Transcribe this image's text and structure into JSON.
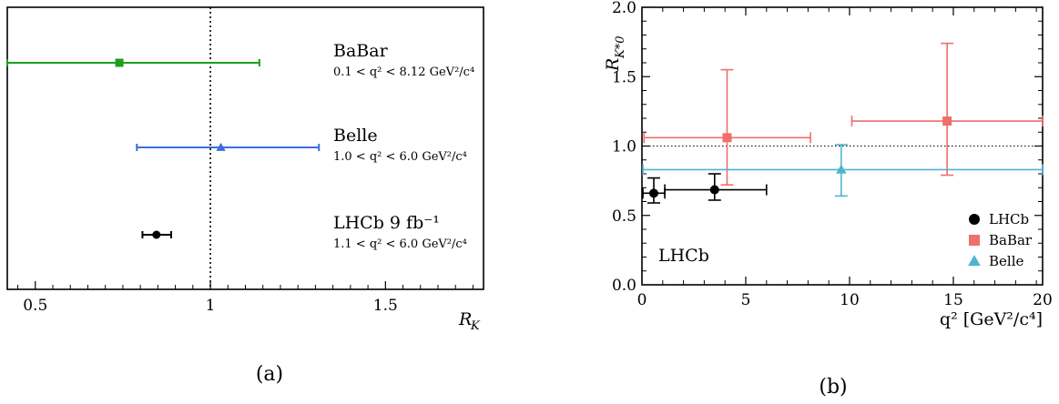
{
  "chart_data": [
    {
      "type": "scatter",
      "panel_caption": "(a)",
      "xlabel": "R",
      "xlabel_sub": "K",
      "xlim": [
        0.42,
        1.78
      ],
      "xticks": [
        "0.5",
        "1",
        "1.5"
      ],
      "reference_line": 1.0,
      "grid": false,
      "series": [
        {
          "name": "BaBar",
          "subtitle": "0.1 < q² < 8.12 GeV²/c⁴",
          "value": 0.74,
          "lo": 0.42,
          "hi": 1.14,
          "color": "#1f9e1f",
          "marker": "square"
        },
        {
          "name": "Belle",
          "subtitle": "1.0 < q² < 6.0 GeV²/c⁴",
          "value": 1.03,
          "lo": 0.79,
          "hi": 1.31,
          "color": "#3a6fdc",
          "marker": "triangle"
        },
        {
          "name": "LHCb 9 fb⁻¹",
          "subtitle": "1.1 < q² < 6.0 GeV²/c⁴",
          "value": 0.846,
          "lo": 0.806,
          "hi": 0.888,
          "color": "#000000",
          "marker": "circle"
        }
      ]
    },
    {
      "type": "scatter",
      "panel_caption": "(b)",
      "xlabel": "q² [GeV²/c⁴]",
      "ylabel": "R",
      "ylabel_sub": "K*0",
      "xlim": [
        0,
        19.3
      ],
      "ylim": [
        0.0,
        2.0
      ],
      "xticks": [
        "0",
        "5",
        "10",
        "15",
        "20"
      ],
      "yticks": [
        "0.0",
        "0.5",
        "1.0",
        "1.5",
        "2.0"
      ],
      "reference_line": 1.0,
      "annotation": "LHCb",
      "legend": "bottom-right",
      "grid": false,
      "series": [
        {
          "name": "LHCb",
          "color": "#000000",
          "marker": "circle",
          "points": [
            {
              "x": 0.57,
              "xlo": 0.045,
              "xhi": 1.1,
              "y": 0.66,
              "ylo": 0.59,
              "yhi": 0.77
            },
            {
              "x": 3.5,
              "xlo": 1.1,
              "xhi": 6.0,
              "y": 0.685,
              "ylo": 0.61,
              "yhi": 0.8
            }
          ]
        },
        {
          "name": "BaBar",
          "color": "#ef6f6a",
          "marker": "square",
          "points": [
            {
              "x": 4.1,
              "xlo": 0.1,
              "xhi": 8.12,
              "y": 1.06,
              "ylo": 0.72,
              "yhi": 1.55
            },
            {
              "x": 14.7,
              "xlo": 10.11,
              "xhi": 19.3,
              "y": 1.18,
              "ylo": 0.79,
              "yhi": 1.74
            }
          ]
        },
        {
          "name": "Belle",
          "color": "#4fb5cf",
          "marker": "triangle",
          "points": [
            {
              "x": 9.6,
              "xlo": 0.045,
              "xhi": 19.3,
              "y": 0.83,
              "ylo": 0.64,
              "yhi": 1.01
            }
          ]
        }
      ]
    }
  ]
}
